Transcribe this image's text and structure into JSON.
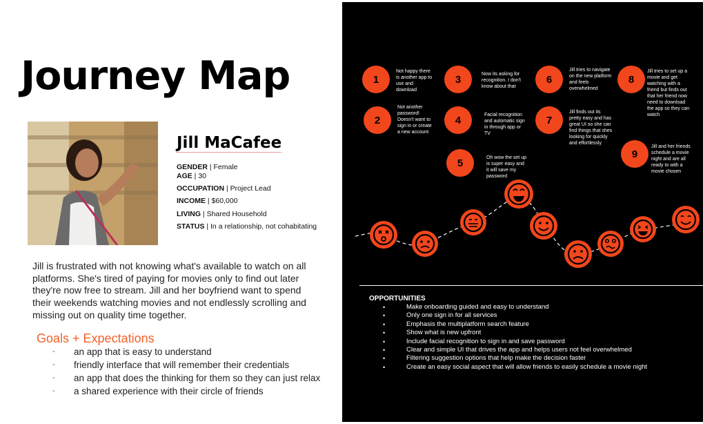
{
  "title": "Journey Map",
  "persona": {
    "name": "Jill MaCafee",
    "facts": [
      {
        "label": "GENDER",
        "value": "Female"
      },
      {
        "label": "AGE",
        "value": "30"
      },
      {
        "label": "OCCUPATION",
        "value": "Project Lead"
      },
      {
        "label": "INCOME",
        "value": "$60,000"
      },
      {
        "label": "LIVING",
        "value": "Shared Household"
      },
      {
        "label": "STATUS",
        "value": "In a relationship, not cohabitating"
      }
    ],
    "description": "Jill is frustrated with not knowing what's available to watch on all platforms. She's tired of paying for movies only to find out later they're now free to stream. Jill and her boyfriend want to spend their weekends watching movies and not endlessly scrolling and missing out on quality time together."
  },
  "goals": {
    "heading": "Goals + Expectations",
    "items": [
      "an app that is easy to understand",
      "friendly interface that will remember their credentials",
      "an app that does the thinking for them so they can just relax",
      "a shared experience with their circle of friends"
    ]
  },
  "steps": [
    {
      "number": "1",
      "text": "Not happy there is another app to use and download"
    },
    {
      "number": "2",
      "text": "Not another password! Doesn't want to sign in or create a new account"
    },
    {
      "number": "3",
      "text": "Now its asking for recognition. I don't know about that"
    },
    {
      "number": "4",
      "text": "Facial recognition and automatic sign in through app or TV"
    },
    {
      "number": "5",
      "text": "Oh wow the set up is super easy and it will save my password"
    },
    {
      "number": "6",
      "text": "Jill tries to navigate on the new platform and feels overwhelmed"
    },
    {
      "number": "7",
      "text": "Jill finds out its pretty easy and has great UI so she can find things that shes looking for quickly and effortlessly"
    },
    {
      "number": "8",
      "text": "Jill tries to set up a movie and get watching with a friend but finds out that her friend now need to download the app so they can watch"
    },
    {
      "number": "9",
      "text": "Jill and her friends schedule a movie night and are all ready to with a movie chosen"
    }
  ],
  "emotions": [
    "dizzy",
    "worried",
    "neutral",
    "very-happy",
    "happy",
    "sad",
    "confused",
    "grinning",
    "happy"
  ],
  "opportunities": {
    "heading": "OPPORTUNITIES",
    "items": [
      "Make onboarding guided and easy to understand",
      "Only one sign in for all services",
      "Emphasis the multiplatform search feature",
      "Show what is new upfront",
      "Include facial recognition to sign in and save password",
      "Clear and simple UI that drives the app and helps users not feel overwhelmed",
      "Filtering suggestion options that help make the decision faster",
      "Create an easy social aspect that will allow friends to easily schedule a movie night"
    ]
  },
  "colors": {
    "accent": "#f2461c",
    "heading_orange": "#f2612b",
    "panel": "#000000"
  }
}
